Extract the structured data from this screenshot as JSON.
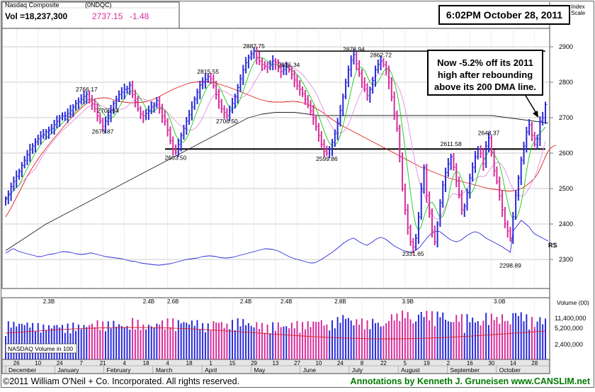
{
  "header": {
    "symbol_name": "Nasdaq Composite",
    "symbol_code": "(0NDQC)",
    "volume_label": "Vol =18,237,300",
    "last_price": "2737.15",
    "change": "-1.48",
    "timestamp": "6:02PM October 28, 2011",
    "index_scale_label_1": "Index",
    "index_scale_label_2": "Scale"
  },
  "annotation_text": [
    "Now -5.2% off its 2011",
    "high after rebounding",
    "above its 200 DMA line."
  ],
  "volume_panel_label": "NASDAQ Volume in 100",
  "volume_axis_title": "Volume (00)",
  "rs_label": "RS",
  "footer": {
    "copyright": "©2011 William O'Neil + Co. Incorporated. All rights reserved.",
    "credit": "Annotations by Kenneth J. Gruneisen  www.CANSLIM.net"
  },
  "colors": {
    "up_bar": "#2a2ad8",
    "down_bar": "#d62d9b",
    "ma10": "#16c916",
    "ma50": "#e02020",
    "ma200": "#222222",
    "rs_line": "#2a2ad8",
    "ma_pink": "#e28ee2",
    "annotation": "#007a00"
  },
  "chart_data": {
    "type": "ohlc",
    "title": "Nasdaq Composite",
    "price_axis": {
      "ticks": [
        2300,
        2400,
        2500,
        2600,
        2700,
        2800,
        2900
      ],
      "range": [
        2280,
        2960
      ]
    },
    "volume_axis": {
      "ticks": [
        "11,400,000",
        "5,200,000",
        "2,400,000"
      ]
    },
    "month_labels": [
      "December",
      "January",
      "February",
      "March",
      "April",
      "May",
      "June",
      "July",
      "August",
      "September",
      "October"
    ],
    "day_labels": [
      "26",
      "10",
      "24",
      "7",
      "21",
      "4",
      "18",
      "4",
      "18",
      "1",
      "15",
      "29",
      "13",
      "27",
      "10",
      "24",
      "8",
      "22",
      "5",
      "19",
      "2",
      "16",
      "30",
      "14",
      "28"
    ],
    "price_labels": [
      {
        "text": "2766.17",
        "value": 2766.17
      },
      {
        "text": "2676.87",
        "value": 2676.87
      },
      {
        "text": "2705.54",
        "value": 2705.54
      },
      {
        "text": "2603.50",
        "value": 2603.5
      },
      {
        "text": "2815.55",
        "value": 2815.55
      },
      {
        "text": "2706.50",
        "value": 2706.5
      },
      {
        "text": "2887.75",
        "value": 2887.75
      },
      {
        "text": "2835.34",
        "value": 2835.34
      },
      {
        "text": "2599.86",
        "value": 2599.86
      },
      {
        "text": "2878.94",
        "value": 2878.94
      },
      {
        "text": "2862.72",
        "value": 2862.72
      },
      {
        "text": "2331.65",
        "value": 2331.65
      },
      {
        "text": "2611.58",
        "value": 2611.58
      },
      {
        "text": "2643.37",
        "value": 2643.37
      },
      {
        "text": "2298.89",
        "value": 2298.89
      }
    ],
    "volume_labels": [
      "2.3B",
      "2.4B",
      "2.6B",
      "2.4B",
      "2.4B",
      "2.8B",
      "3.9B",
      "3.0B"
    ],
    "reference_lines": [
      {
        "name": "resistance",
        "value": 2887.75
      },
      {
        "name": "support",
        "value": 2611.58
      }
    ],
    "series_close": [
      2470,
      2485,
      2505,
      2520,
      2535,
      2548,
      2565,
      2580,
      2595,
      2610,
      2620,
      2632,
      2640,
      2648,
      2652,
      2660,
      2665,
      2670,
      2680,
      2690,
      2700,
      2705,
      2705,
      2712,
      2720,
      2730,
      2740,
      2745,
      2752,
      2760,
      2766,
      2752,
      2740,
      2725,
      2705,
      2690,
      2676,
      2690,
      2705,
      2720,
      2740,
      2752,
      2765,
      2772,
      2780,
      2782,
      2792,
      2765,
      2745,
      2725,
      2710,
      2705,
      2712,
      2720,
      2730,
      2735,
      2748,
      2725,
      2705,
      2690,
      2665,
      2635,
      2610,
      2603,
      2625,
      2650,
      2670,
      2690,
      2708,
      2730,
      2752,
      2772,
      2792,
      2800,
      2808,
      2816,
      2810,
      2790,
      2765,
      2745,
      2725,
      2715,
      2706,
      2720,
      2740,
      2760,
      2785,
      2810,
      2835,
      2855,
      2870,
      2880,
      2887,
      2870,
      2860,
      2850,
      2845,
      2842,
      2848,
      2860,
      2855,
      2840,
      2830,
      2836,
      2842,
      2835,
      2822,
      2806,
      2790,
      2780,
      2768,
      2752,
      2735,
      2720,
      2700,
      2675,
      2650,
      2625,
      2605,
      2600,
      2612,
      2630,
      2655,
      2685,
      2720,
      2760,
      2800,
      2835,
      2862,
      2878,
      2852,
      2825,
      2800,
      2780,
      2762,
      2780,
      2805,
      2835,
      2850,
      2860,
      2850,
      2835,
      2800,
      2758,
      2712,
      2670,
      2590,
      2500,
      2440,
      2390,
      2350,
      2335,
      2360,
      2420,
      2500,
      2560,
      2480,
      2430,
      2380,
      2350,
      2400,
      2460,
      2510,
      2545,
      2570,
      2590,
      2560,
      2520,
      2480,
      2440,
      2450,
      2490,
      2530,
      2560,
      2590,
      2612,
      2600,
      2570,
      2620,
      2643,
      2600,
      2550,
      2520,
      2480,
      2440,
      2400,
      2380,
      2360,
      2420,
      2480,
      2530,
      2580,
      2620,
      2660,
      2680,
      2650,
      2625,
      2640,
      2690,
      2700,
      2737
    ],
    "series_ma50": [
      2420,
      2432,
      2445,
      2460,
      2475,
      2490,
      2505,
      2520,
      2535,
      2548,
      2560,
      2572,
      2583,
      2594,
      2604,
      2614,
      2624,
      2634,
      2643,
      2652,
      2661,
      2670,
      2679,
      2688,
      2697,
      2705,
      2713,
      2720,
      2727,
      2734,
      2740,
      2745,
      2749,
      2752,
      2754,
      2755,
      2756,
      2756,
      2755,
      2753,
      2750,
      2748,
      2746,
      2745,
      2744,
      2743,
      2742,
      2742,
      2742,
      2743,
      2743,
      2744,
      2745,
      2747,
      2750,
      2753,
      2756,
      2760,
      2764,
      2768,
      2772,
      2776,
      2780,
      2783,
      2786,
      2789,
      2792,
      2795,
      2797,
      2799,
      2800,
      2801,
      2802,
      2802,
      2802,
      2801,
      2800,
      2799,
      2797,
      2795,
      2793,
      2790,
      2788,
      2785,
      2782,
      2779,
      2776,
      2773,
      2770,
      2767,
      2764,
      2761,
      2758,
      2755,
      2752,
      2750,
      2748,
      2746,
      2745,
      2744,
      2744,
      2744,
      2744,
      2744,
      2745,
      2745,
      2746,
      2746,
      2745,
      2744,
      2742,
      2740,
      2737,
      2734,
      2730,
      2726,
      2722,
      2717,
      2712,
      2706,
      2700,
      2695,
      2690,
      2685,
      2680,
      2676,
      2672,
      2668,
      2664,
      2660,
      2656,
      2652,
      2648,
      2644,
      2640,
      2636,
      2632,
      2628,
      2624,
      2620,
      2616,
      2612,
      2608,
      2604,
      2600,
      2596,
      2592,
      2588,
      2584,
      2580,
      2576,
      2572,
      2568,
      2564,
      2560,
      2557,
      2554,
      2551,
      2548,
      2545,
      2542,
      2539,
      2536,
      2533,
      2530,
      2528,
      2526,
      2524,
      2522,
      2520,
      2518,
      2516,
      2514,
      2512,
      2510,
      2508,
      2506,
      2504,
      2502,
      2500,
      2499,
      2498,
      2497,
      2496,
      2495,
      2494,
      2493,
      2493,
      2494,
      2495,
      2497,
      2500,
      2504,
      2509,
      2515,
      2522,
      2530,
      2540,
      2555,
      2572,
      2590,
      2605,
      2615,
      2620,
      2622
    ],
    "series_ma200": [
      2325,
      2330,
      2335,
      2340,
      2345,
      2350,
      2355,
      2360,
      2365,
      2370,
      2375,
      2380,
      2385,
      2390,
      2395,
      2400,
      2404,
      2408,
      2412,
      2416,
      2420,
      2424,
      2428,
      2432,
      2436,
      2440,
      2444,
      2448,
      2452,
      2456,
      2460,
      2464,
      2468,
      2472,
      2476,
      2480,
      2484,
      2488,
      2492,
      2496,
      2500,
      2504,
      2508,
      2512,
      2516,
      2520,
      2524,
      2528,
      2532,
      2536,
      2540,
      2544,
      2548,
      2552,
      2556,
      2560,
      2564,
      2568,
      2572,
      2576,
      2580,
      2584,
      2588,
      2592,
      2596,
      2600,
      2604,
      2608,
      2612,
      2616,
      2620,
      2624,
      2628,
      2632,
      2636,
      2640,
      2644,
      2648,
      2652,
      2656,
      2660,
      2664,
      2668,
      2672,
      2676,
      2680,
      2684,
      2688,
      2692,
      2696,
      2700,
      2702,
      2704,
      2706,
      2708,
      2710,
      2711,
      2712,
      2713,
      2714,
      2715,
      2715,
      2715,
      2715,
      2715,
      2715,
      2715,
      2715,
      2714,
      2713,
      2712,
      2711,
      2710,
      2709,
      2708,
      2707,
      2706,
      2706,
      2706,
      2706,
      2706,
      2706,
      2706,
      2706,
      2706,
      2706,
      2706,
      2706,
      2706,
      2706,
      2706,
      2706,
      2706,
      2706,
      2706,
      2706,
      2706,
      2706,
      2706,
      2706,
      2706,
      2706,
      2706,
      2706,
      2706,
      2706,
      2706,
      2706,
      2706,
      2706,
      2706,
      2706,
      2706,
      2706,
      2706,
      2706,
      2706,
      2706,
      2706,
      2706,
      2706,
      2706,
      2706,
      2706,
      2706,
      2706,
      2706,
      2706,
      2706,
      2706,
      2706,
      2706,
      2706,
      2706,
      2706,
      2706,
      2706,
      2706,
      2706,
      2706,
      2706,
      2705,
      2704,
      2703,
      2702,
      2701,
      2700,
      2699,
      2698,
      2697,
      2696,
      2695,
      2694,
      2693,
      2692,
      2691,
      2690,
      2689,
      2688,
      2687,
      2686,
      2685
    ],
    "series_rs": [
      2318,
      2322,
      2328,
      2330,
      2326,
      2322,
      2320,
      2318,
      2316,
      2314,
      2312,
      2310,
      2308,
      2308,
      2310,
      2312,
      2314,
      2315,
      2316,
      2318,
      2320,
      2322,
      2322,
      2321,
      2320,
      2318,
      2316,
      2315,
      2314,
      2315,
      2316,
      2318,
      2318,
      2316,
      2314,
      2312,
      2310,
      2308,
      2307,
      2306,
      2305,
      2304,
      2303,
      2302,
      2300,
      2298,
      2296,
      2295,
      2294,
      2292,
      2290,
      2289,
      2288,
      2287,
      2286,
      2285,
      2284,
      2284,
      2285,
      2286,
      2287,
      2288,
      2290,
      2292,
      2294,
      2296,
      2298,
      2300,
      2301,
      2302,
      2303,
      2304,
      2306,
      2308,
      2309,
      2310,
      2310,
      2309,
      2308,
      2306,
      2305,
      2304,
      2304,
      2305,
      2306,
      2308,
      2310,
      2312,
      2314,
      2316,
      2318,
      2320,
      2322,
      2324,
      2326,
      2328,
      2330,
      2330,
      2329,
      2328,
      2326,
      2324,
      2320,
      2316,
      2312,
      2308,
      2305,
      2302,
      2300,
      2298,
      2296,
      2294,
      2292,
      2290,
      2290,
      2292,
      2296,
      2300,
      2305,
      2310,
      2315,
      2320,
      2326,
      2332,
      2338,
      2345,
      2350,
      2355,
      2358,
      2360,
      2355,
      2350,
      2346,
      2342,
      2340,
      2345,
      2350,
      2356,
      2360,
      2362,
      2360,
      2356,
      2350,
      2344,
      2338,
      2334,
      2330,
      2326,
      2324,
      2322,
      2320,
      2322,
      2326,
      2332,
      2340,
      2350,
      2360,
      2368,
      2374,
      2378,
      2380,
      2378,
      2372,
      2366,
      2360,
      2355,
      2352,
      2350,
      2352,
      2356,
      2362,
      2368,
      2372,
      2376,
      2378,
      2376,
      2372,
      2366,
      2360,
      2356,
      2352,
      2348,
      2344,
      2340,
      2336,
      2330,
      2326,
      2320,
      2380,
      2390,
      2400,
      2410,
      2405,
      2398,
      2392,
      2380,
      2372,
      2368,
      2364,
      2360,
      2356,
      2352
    ]
  }
}
